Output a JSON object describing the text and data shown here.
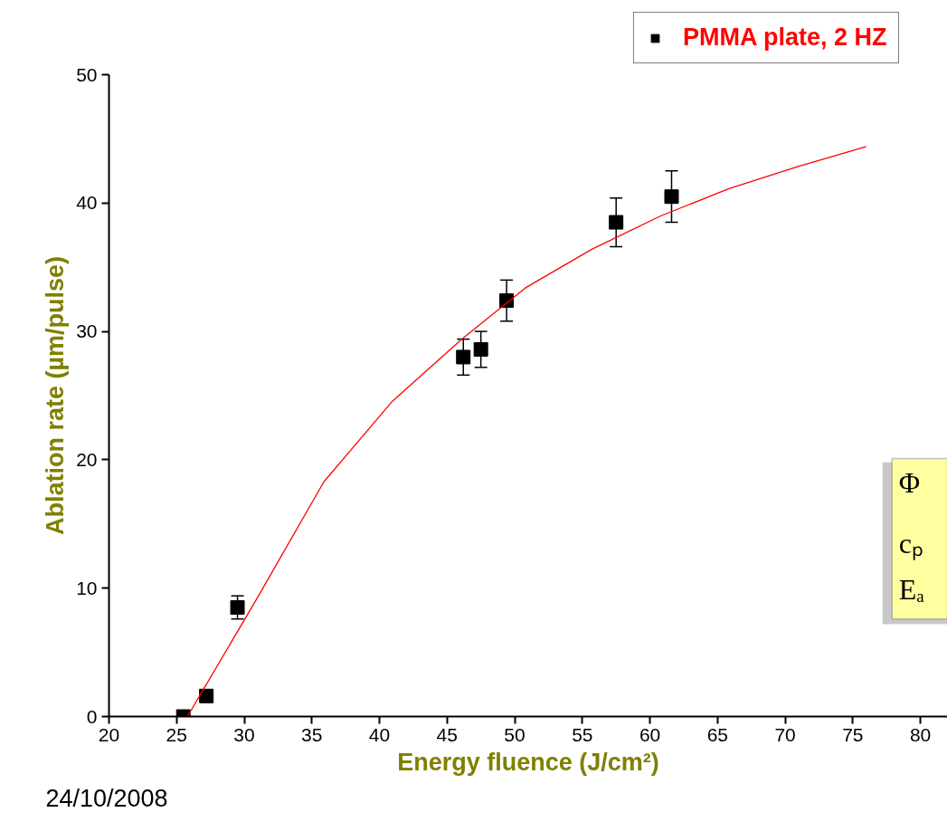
{
  "chart_data": {
    "type": "scatter",
    "xlabel": "Energy fluence (J/cm²)",
    "ylabel": "Ablation rate (µm/pulse)",
    "xlim": [
      20,
      82
    ],
    "ylim": [
      0,
      50
    ],
    "xticks": [
      20,
      25,
      30,
      35,
      40,
      45,
      50,
      55,
      60,
      65,
      70,
      75,
      80
    ],
    "yticks": [
      0,
      10,
      20,
      30,
      40,
      50
    ],
    "grid": false,
    "legend": "top right",
    "series": [
      {
        "name": "PMMA plate, 2 HZ",
        "marker": "square",
        "color": "#000000",
        "x": [
          25.5,
          27.2,
          29.5,
          46.2,
          47.5,
          49.4,
          57.5,
          61.6
        ],
        "values": [
          0.0,
          1.6,
          8.5,
          28.0,
          28.6,
          32.4,
          38.5,
          40.5
        ],
        "errors": [
          null,
          null,
          0.9,
          1.4,
          1.4,
          1.6,
          1.9,
          2.0
        ]
      },
      {
        "type": "line",
        "color": "#ff0000",
        "x": [
          25.8,
          31,
          35.9,
          40.9,
          46.2,
          50.8,
          55.7,
          60.8,
          65.8,
          70.8,
          76.0
        ],
        "values": [
          0.0,
          9.3,
          18.3,
          24.5,
          29.5,
          33.4,
          36.4,
          39.0,
          41.1,
          42.8,
          44.4
        ]
      }
    ],
    "annotations": [
      "24/10/2008",
      "Φ",
      "cₚ",
      "Eₐ"
    ]
  }
}
